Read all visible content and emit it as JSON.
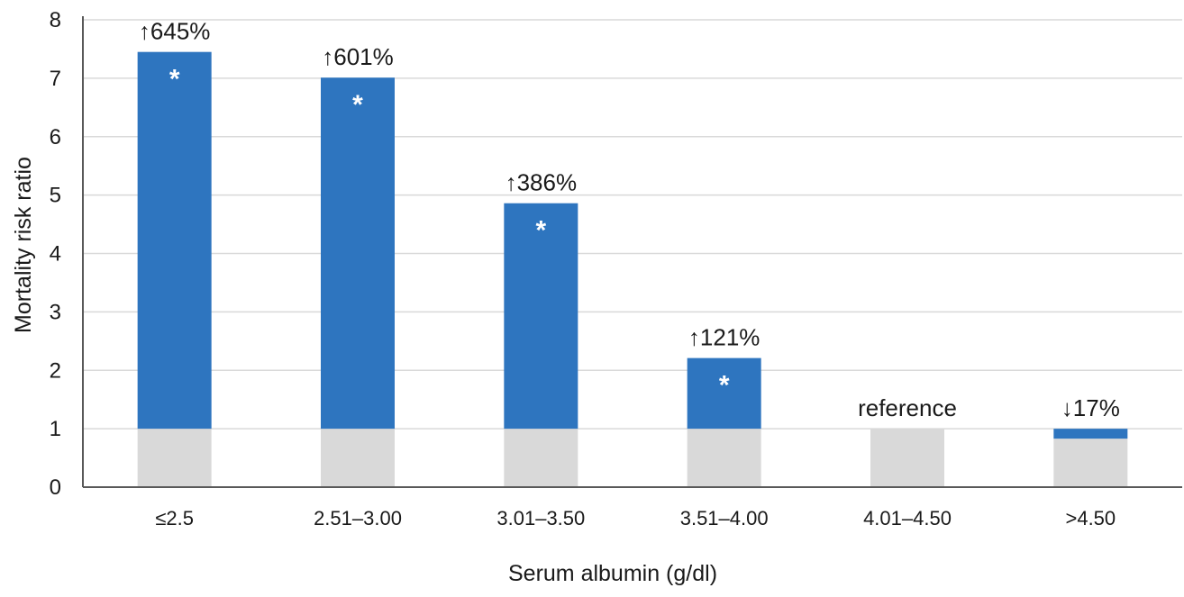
{
  "chart_data": {
    "type": "bar",
    "xlabel": "Serum albumin (g/dl)",
    "ylabel": "Mortality risk ratio",
    "ylim": [
      0,
      8
    ],
    "yticks": [
      "0",
      "1",
      "2",
      "3",
      "4",
      "5",
      "6",
      "7",
      "8"
    ],
    "grid": true,
    "categories": [
      "≤2.5",
      "2.51–3.00",
      "3.01–3.50",
      "3.51–4.00",
      "4.01–4.50",
      ">4.50"
    ],
    "values": [
      7.45,
      7.01,
      4.86,
      2.21,
      1.0,
      0.83
    ],
    "reference_value": 1.0,
    "labels": [
      "↑645%",
      "↑601%",
      "↑386%",
      "↑121%",
      "reference",
      "↓17%"
    ],
    "significance_marks": [
      "*",
      "*",
      "*",
      "*",
      "",
      ""
    ],
    "colors": {
      "risk_segment": "#2e75bf",
      "reference_segment": "#d9d9d9",
      "grid": "#d9d9d9",
      "axis": "#595959",
      "significance_mark": "#ffffff"
    }
  }
}
